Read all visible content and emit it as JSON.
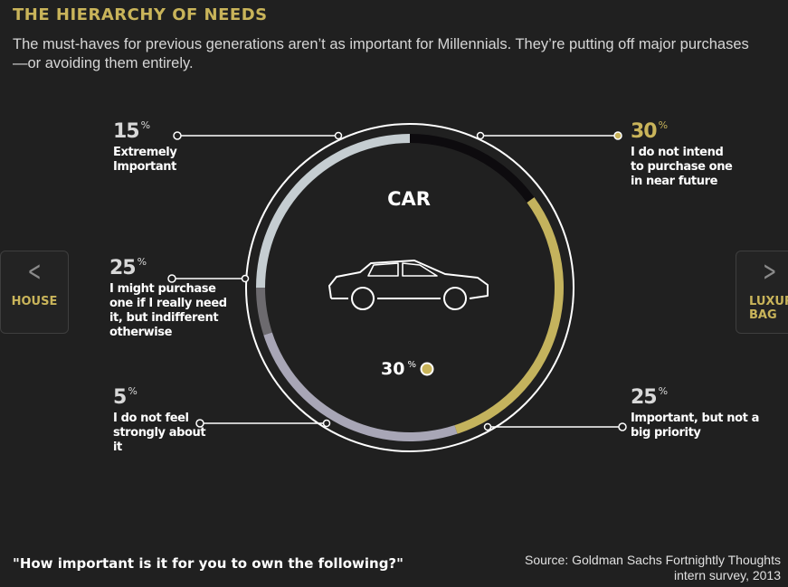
{
  "title": "THE HIERARCHY OF NEEDS",
  "subtitle": "The must-haves for previous generations aren’t as important for Millennials. They’re putting off major purchases—or avoiding them entirely.",
  "center": {
    "label": "CAR",
    "value": "30",
    "unit": "%",
    "icon": "car-icon"
  },
  "nav": {
    "prev": {
      "label": "HOUSE",
      "icon": "chevron-left-icon"
    },
    "next": {
      "label": "LUXURY BAG",
      "icon": "chevron-right-icon"
    }
  },
  "question": "\"How important is it for you to own the following?\"",
  "source": "Source: Goldman Sachs Fortnightly Thoughts intern survey, 2013",
  "colors": {
    "background": "#202020",
    "accent": "#c9b45a",
    "extremely_important": "#0d0b0e",
    "do_not_intend": "#c4b35d",
    "important_not_big": "#a8a6b6",
    "do_not_feel": "#6c6a6e",
    "might_purchase": "#c5cdd1"
  },
  "chart_data": {
    "type": "pie",
    "title": "CAR",
    "series": [
      {
        "label": "Extremely Important",
        "value": 15,
        "pct_label": "15",
        "unit": "%"
      },
      {
        "label": "I do not intend to purchase one in near future",
        "value": 30,
        "pct_label": "30",
        "unit": "%"
      },
      {
        "label": "Important, but not a big priority",
        "value": 25,
        "pct_label": "25",
        "unit": "%"
      },
      {
        "label": "I do not feel strongly about it",
        "value": 5,
        "pct_label": "5",
        "unit": "%"
      },
      {
        "label": "I might purchase one if I really need it, but indifferent otherwise",
        "value": 25,
        "pct_label": "25",
        "unit": "%"
      }
    ]
  }
}
